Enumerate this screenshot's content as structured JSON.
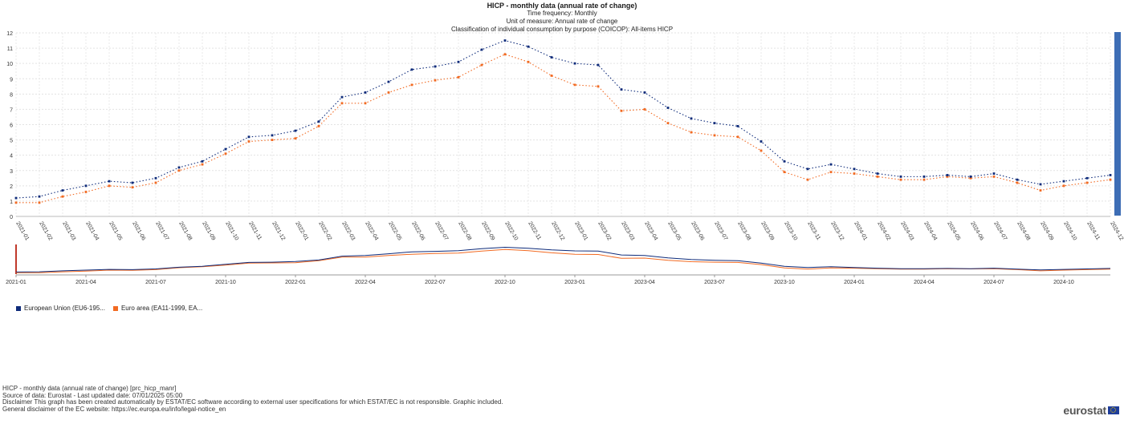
{
  "chart_data": {
    "type": "line",
    "title": "HICP - monthly data (annual rate of change)",
    "subtitle_lines": [
      "Time frequency:  Monthly",
      "Unit of measure:  Annual rate of change",
      "Classification of individual consumption by purpose (COICOP):  All-items HICP"
    ],
    "x": [
      "2021-01",
      "2021-02",
      "2021-03",
      "2021-04",
      "2021-05",
      "2021-06",
      "2021-07",
      "2021-08",
      "2021-09",
      "2021-10",
      "2021-11",
      "2021-12",
      "2022-01",
      "2022-02",
      "2022-03",
      "2022-04",
      "2022-05",
      "2022-06",
      "2022-07",
      "2022-08",
      "2022-09",
      "2022-10",
      "2022-11",
      "2022-12",
      "2023-01",
      "2023-02",
      "2023-03",
      "2023-04",
      "2023-05",
      "2023-06",
      "2023-07",
      "2023-08",
      "2023-09",
      "2023-10",
      "2023-11",
      "2023-12",
      "2024-01",
      "2024-02",
      "2024-03",
      "2024-04",
      "2024-05",
      "2024-06",
      "2024-07",
      "2024-08",
      "2024-09",
      "2024-10",
      "2024-11",
      "2024-12"
    ],
    "series": [
      {
        "name": "European Union (EU6-195...",
        "color": "#0e2b7a",
        "values": [
          1.2,
          1.3,
          1.7,
          2.0,
          2.3,
          2.2,
          2.5,
          3.2,
          3.6,
          4.4,
          5.2,
          5.3,
          5.6,
          6.2,
          7.8,
          8.1,
          8.8,
          9.6,
          9.8,
          10.1,
          10.9,
          11.5,
          11.1,
          10.4,
          10.0,
          9.9,
          8.3,
          8.1,
          7.1,
          6.4,
          6.1,
          5.9,
          4.9,
          3.6,
          3.1,
          3.4,
          3.1,
          2.8,
          2.6,
          2.6,
          2.7,
          2.6,
          2.8,
          2.4,
          2.1,
          2.3,
          2.5,
          2.7
        ]
      },
      {
        "name": "Euro area (EA11-1999, EA...",
        "color": "#f26a22",
        "values": [
          0.9,
          0.9,
          1.3,
          1.6,
          2.0,
          1.9,
          2.2,
          3.0,
          3.4,
          4.1,
          4.9,
          5.0,
          5.1,
          5.9,
          7.4,
          7.4,
          8.1,
          8.6,
          8.9,
          9.1,
          9.9,
          10.6,
          10.1,
          9.2,
          8.6,
          8.5,
          6.9,
          7.0,
          6.1,
          5.5,
          5.3,
          5.2,
          4.3,
          2.9,
          2.4,
          2.9,
          2.8,
          2.6,
          2.4,
          2.4,
          2.6,
          2.5,
          2.6,
          2.2,
          1.7,
          2.0,
          2.2,
          2.4
        ]
      }
    ],
    "ylim": [
      0,
      12
    ],
    "yticks": [
      "0",
      "1",
      "2",
      "3",
      "4",
      "5",
      "6",
      "7",
      "8",
      "9",
      "10",
      "11",
      "12"
    ],
    "grid": true,
    "legend_position": "bottom-left",
    "navigator_ticks": [
      "2021-01",
      "2021-04",
      "2021-07",
      "2021-10",
      "2022-01",
      "2022-04",
      "2022-07",
      "2022-10",
      "2023-01",
      "2023-04",
      "2023-07",
      "2023-10",
      "2024-01",
      "2024-04",
      "2024-07",
      "2024-10"
    ]
  },
  "footer": {
    "lines": [
      "HICP - monthly data (annual rate of change) [prc_hicp_manr]",
      "Source of data: Eurostat - Last updated date: 07/01/2025 05:00",
      "Disclaimer This graph has been created automatically by ESTAT/EC software according to external user specifications for which ESTAT/EC is not responsible. Graphic included.",
      "General disclaimer of the EC website: https://ec.europa.eu/info/legal-notice_en"
    ]
  },
  "logo": {
    "text": "eurostat"
  }
}
